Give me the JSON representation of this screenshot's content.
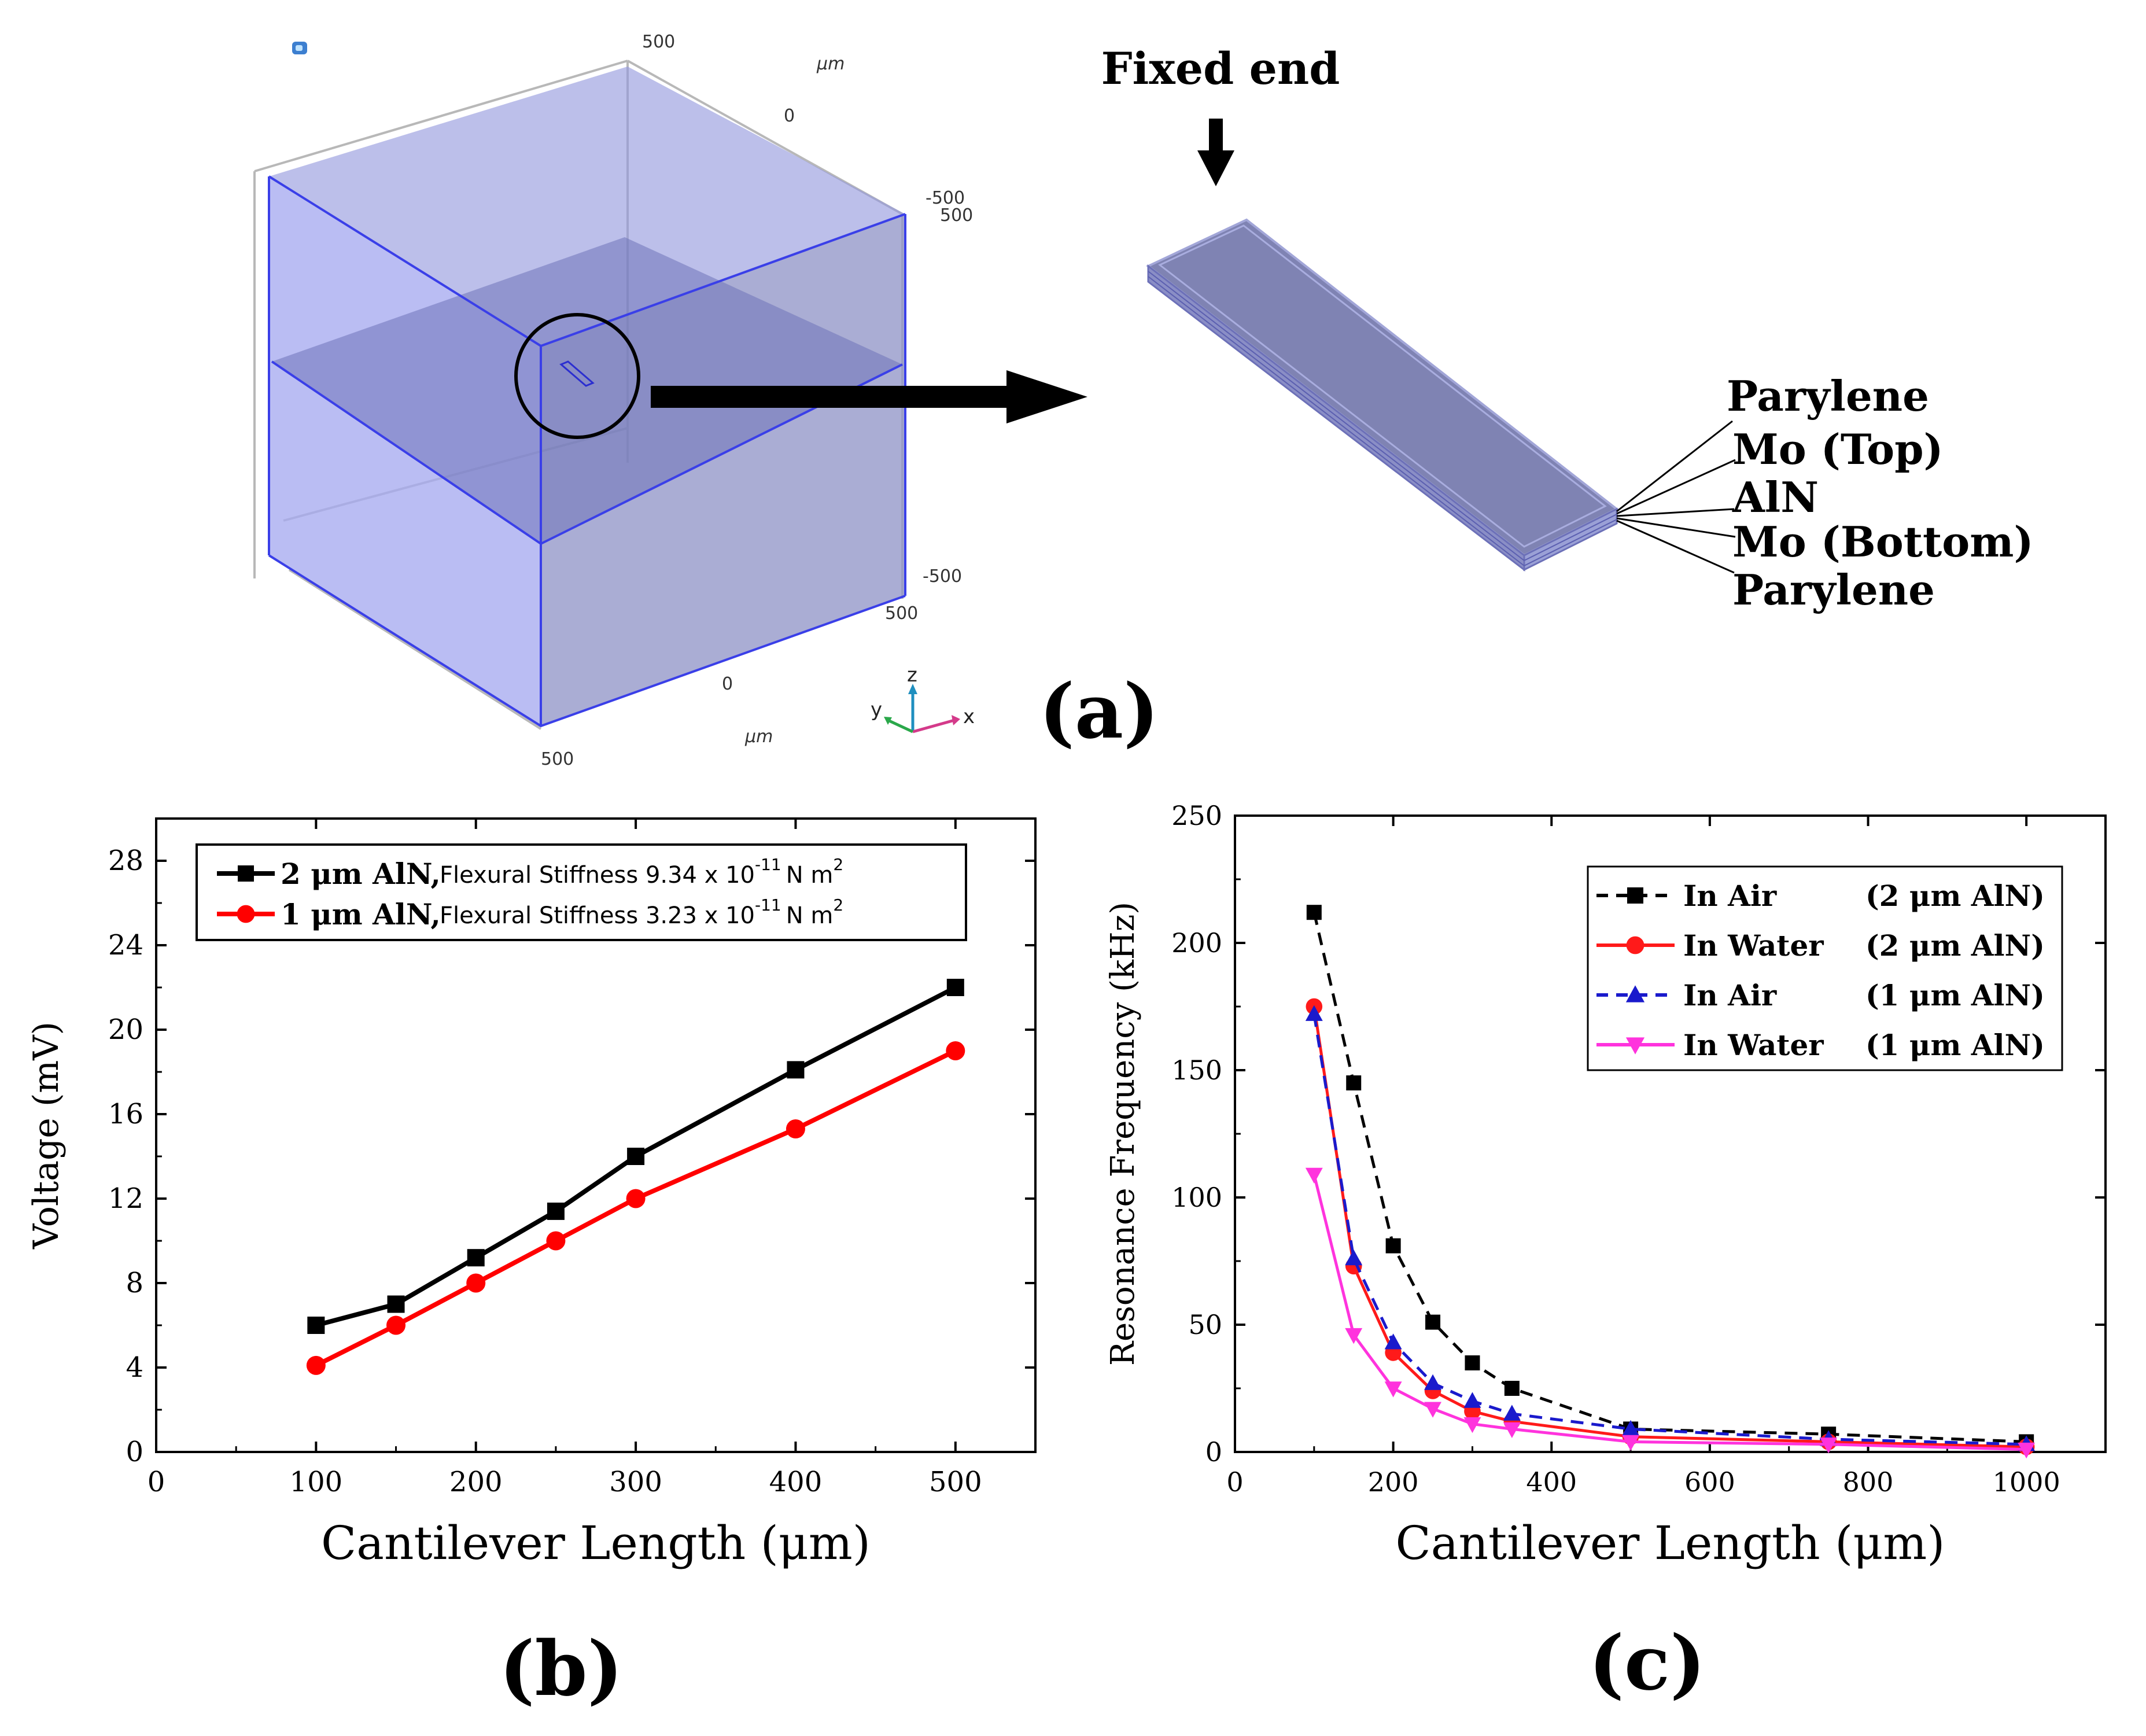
{
  "panel_a": {
    "label": "(a)",
    "fixed_end_label": "Fixed end",
    "layers": [
      "Parylene",
      "Mo (Top)",
      "AlN",
      "Mo (Bottom)",
      "Parylene"
    ],
    "axis_ticks": {
      "top_500": "500",
      "top_um": "μm",
      "top_0": "0",
      "right_neg500_top": "-500",
      "right_500_top": "500",
      "right_neg500_bottom": "-500",
      "right_500_bottom": "500",
      "bottom_0": "0",
      "bottom_um": "μm",
      "bottom_500": "500"
    },
    "triad": {
      "x": "x",
      "y": "y",
      "z": "z"
    },
    "colors": {
      "domain_fill": "#8f93df",
      "domain_edge": "#3338e0",
      "beam": "#8585b8"
    }
  },
  "chart_data": [
    {
      "panel_label": "(b)",
      "type": "line",
      "xlabel": "Cantilever Length (μm)",
      "ylabel": "Voltage (mV)",
      "xlim": [
        0,
        550
      ],
      "ylim": [
        0,
        30
      ],
      "xticks": [
        0,
        100,
        200,
        300,
        400,
        500
      ],
      "yticks": [
        0,
        4,
        8,
        12,
        16,
        20,
        24,
        28
      ],
      "legend_position": "top-left",
      "series": [
        {
          "name": "2 μm AlN",
          "legend_note": "Flexural Stiffness 9.34 x 10",
          "legend_exp": "-11",
          "legend_unit": "N m",
          "legend_unit_exp": "2",
          "color": "#000000",
          "marker": "square",
          "x": [
            100,
            150,
            200,
            250,
            300,
            400,
            500
          ],
          "y": [
            6.0,
            7.0,
            9.2,
            11.4,
            14.0,
            18.1,
            22.0
          ]
        },
        {
          "name": "1 μm AlN",
          "legend_note": "Flexural Stiffness 3.23 x 10",
          "legend_exp": "-11",
          "legend_unit": "N m",
          "legend_unit_exp": "2",
          "color": "#ff0000",
          "marker": "circle",
          "x": [
            100,
            150,
            200,
            250,
            300,
            400,
            500
          ],
          "y": [
            4.1,
            6.0,
            8.0,
            10.0,
            12.0,
            15.3,
            19.0
          ]
        }
      ]
    },
    {
      "panel_label": "(c)",
      "type": "line",
      "xlabel": "Cantilever Length (μm)",
      "ylabel": "Resonance Frequency (kHz)",
      "xlim": [
        0,
        1100
      ],
      "ylim": [
        0,
        250
      ],
      "xticks": [
        0,
        200,
        400,
        600,
        800,
        1000
      ],
      "yticks": [
        0,
        50,
        100,
        150,
        200,
        250
      ],
      "legend_position": "top-right",
      "series": [
        {
          "name": "In Air",
          "condition": "(2 μm AlN)",
          "color": "#000000",
          "dash": "dashed",
          "marker": "square",
          "x": [
            100,
            150,
            200,
            250,
            300,
            350,
            500,
            750,
            1000
          ],
          "y": [
            212,
            145,
            81,
            51,
            35,
            25,
            9,
            7,
            4
          ]
        },
        {
          "name": "In Water",
          "condition": "(2 μm AlN)",
          "color": "#ff1a1a",
          "dash": "solid",
          "marker": "circle",
          "x": [
            100,
            150,
            200,
            250,
            300,
            350,
            500,
            750,
            1000
          ],
          "y": [
            175,
            73,
            39,
            24,
            16,
            12,
            6,
            4,
            2
          ]
        },
        {
          "name": "In Air",
          "condition": "(1 μm AlN)",
          "color": "#1a1acc",
          "dash": "dashed",
          "marker": "triangle-up",
          "x": [
            100,
            150,
            200,
            250,
            300,
            350,
            500,
            750,
            1000
          ],
          "y": [
            172,
            76,
            43,
            27,
            20,
            15,
            9,
            5,
            3
          ]
        },
        {
          "name": "In Water",
          "condition": "(1 μm AlN)",
          "color": "#ff33dd",
          "dash": "solid",
          "marker": "triangle-down",
          "x": [
            100,
            150,
            200,
            250,
            300,
            350,
            500,
            750,
            1000
          ],
          "y": [
            109,
            46,
            25,
            17,
            11,
            9,
            4,
            3,
            1
          ]
        }
      ]
    }
  ]
}
